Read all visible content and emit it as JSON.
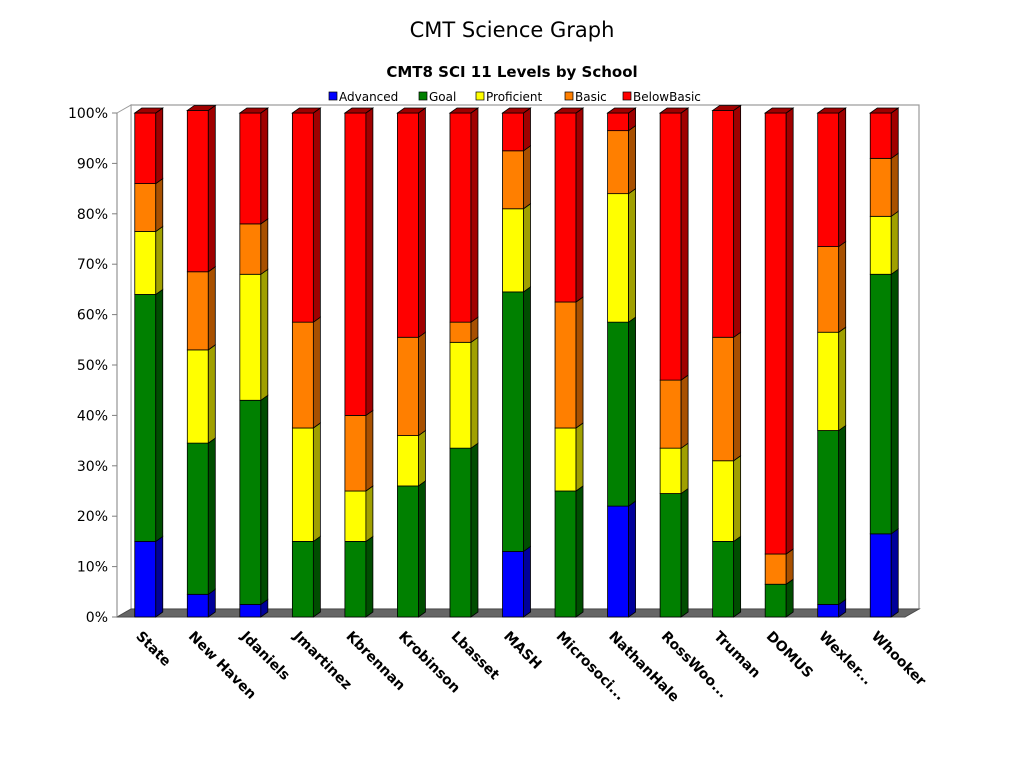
{
  "slide": {
    "title": "CMT Science Graph"
  },
  "chart_data": {
    "type": "bar",
    "stacked": true,
    "percent_axis": true,
    "three_d": true,
    "title": "CMT8 SCI 11 Levels by School",
    "legend_position": "top",
    "ylim": [
      0,
      100
    ],
    "y_ticks": [
      "0%",
      "10%",
      "20%",
      "30%",
      "40%",
      "50%",
      "60%",
      "70%",
      "80%",
      "90%",
      "100%"
    ],
    "categories": [
      "State",
      "New Haven",
      "Jdaniels",
      "Jmartinez",
      "Kbrennan",
      "Krobinson",
      "Lbasset",
      "MASH",
      "Microsoci...",
      "NathanHale",
      "RossWoo...",
      "Truman",
      "DOMUS",
      "Wexler...",
      "Whooker"
    ],
    "series": [
      {
        "name": "Advanced",
        "color": "#0000ff",
        "shade": "#00009a",
        "values": [
          15,
          4.5,
          2.5,
          0,
          0,
          0,
          0,
          13,
          0,
          22,
          0,
          0,
          0,
          2.5,
          16.5
        ]
      },
      {
        "name": "Goal",
        "color": "#008000",
        "shade": "#004d00",
        "values": [
          49,
          30,
          40.5,
          15,
          15,
          26,
          33.5,
          51.5,
          25,
          36.5,
          24.5,
          15,
          6.5,
          34.5,
          51.5
        ]
      },
      {
        "name": "Proficient",
        "color": "#ffff00",
        "shade": "#a0a000",
        "values": [
          12.5,
          18.5,
          25,
          22.5,
          10,
          10,
          21,
          16.5,
          12.5,
          25.5,
          9,
          16,
          0,
          19.5,
          11.5
        ]
      },
      {
        "name": "Basic",
        "color": "#ff7f00",
        "shade": "#a85000",
        "values": [
          9.5,
          15.5,
          10,
          21,
          15,
          19.5,
          4,
          11.5,
          25,
          12.5,
          13.5,
          24.5,
          6,
          17,
          11.5
        ]
      },
      {
        "name": "BelowBasic",
        "color": "#ff0000",
        "shade": "#a00000",
        "values": [
          14,
          32,
          22,
          41.5,
          60,
          44.5,
          41.5,
          7.5,
          37.5,
          3.5,
          53,
          45,
          87.5,
          26.5,
          9
        ]
      }
    ]
  }
}
